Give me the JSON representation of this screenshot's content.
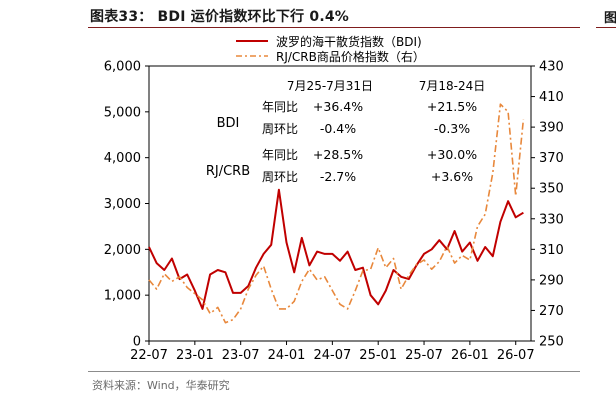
{
  "header": {
    "title": "图表33：  BDI 运价指数环比下行 0.4%",
    "right_glyph": "图"
  },
  "footer": {
    "source": "资料来源：Wind，华泰研究"
  },
  "chart_data": {
    "type": "line",
    "title": "BDI 运价指数环比下行 0.4%",
    "x_ticks": [
      "22-07",
      "23-01",
      "23-07",
      "24-01",
      "24-07",
      "25-01",
      "25-07",
      "26-01",
      "26-07"
    ],
    "xlim": [
      "2022-07",
      "2026-09"
    ],
    "y_left": {
      "lim": [
        0,
        6000
      ],
      "ticks": [
        "0",
        "1,000",
        "2,000",
        "3,000",
        "4,000",
        "5,000",
        "6,000"
      ]
    },
    "y_right": {
      "lim": [
        250,
        430
      ],
      "ticks": [
        "250",
        "270",
        "290",
        "310",
        "330",
        "350",
        "370",
        "390",
        "410",
        "430"
      ]
    },
    "legend": {
      "position": "top-right",
      "entries": [
        "波罗的海干散货指数（BDI)",
        "RJ/CRB商品价格指数（右）"
      ]
    },
    "series": [
      {
        "name": "波罗的海干散货指数（BDI)",
        "axis": "left",
        "color": "#c00000",
        "style": "solid",
        "points": [
          [
            "2022-07",
            2050
          ],
          [
            "2022-08",
            1700
          ],
          [
            "2022-09",
            1550
          ],
          [
            "2022-10",
            1800
          ],
          [
            "2022-11",
            1350
          ],
          [
            "2022-12",
            1450
          ],
          [
            "2023-01",
            1100
          ],
          [
            "2023-02",
            700
          ],
          [
            "2023-03",
            1450
          ],
          [
            "2023-04",
            1550
          ],
          [
            "2023-05",
            1500
          ],
          [
            "2023-06",
            1050
          ],
          [
            "2023-07",
            1050
          ],
          [
            "2023-08",
            1200
          ],
          [
            "2023-09",
            1600
          ],
          [
            "2023-10",
            1900
          ],
          [
            "2023-11",
            2100
          ],
          [
            "2023-12",
            3300
          ],
          [
            "2024-01",
            2150
          ],
          [
            "2024-02",
            1500
          ],
          [
            "2024-03",
            2250
          ],
          [
            "2024-04",
            1650
          ],
          [
            "2024-05",
            1950
          ],
          [
            "2024-06",
            1900
          ],
          [
            "2024-07",
            1900
          ],
          [
            "2024-08",
            1750
          ],
          [
            "2024-09",
            1950
          ],
          [
            "2024-10",
            1550
          ],
          [
            "2024-11",
            1600
          ],
          [
            "2024-12",
            1000
          ],
          [
            "2025-01",
            800
          ],
          [
            "2025-02",
            1100
          ],
          [
            "2025-03",
            1550
          ],
          [
            "2025-04",
            1400
          ],
          [
            "2025-05",
            1350
          ],
          [
            "2025-06",
            1650
          ],
          [
            "2025-07",
            1900
          ],
          [
            "2025-08",
            2000
          ],
          [
            "2025-09",
            2200
          ],
          [
            "2025-10",
            2000
          ],
          [
            "2025-11",
            2400
          ],
          [
            "2025-12",
            1950
          ],
          [
            "2026-01",
            2150
          ],
          [
            "2026-02",
            1750
          ],
          [
            "2026-03",
            2050
          ],
          [
            "2026-04",
            1850
          ],
          [
            "2026-05",
            2600
          ],
          [
            "2026-06",
            3050
          ],
          [
            "2026-07",
            2700
          ],
          [
            "2026-08",
            2800
          ]
        ]
      },
      {
        "name": "RJ/CRB商品价格指数（右）",
        "axis": "right",
        "color": "#e8883c",
        "style": "dash-dot",
        "points": [
          [
            "2022-07",
            290
          ],
          [
            "2022-08",
            284
          ],
          [
            "2022-09",
            294
          ],
          [
            "2022-10",
            289
          ],
          [
            "2022-11",
            292
          ],
          [
            "2022-12",
            285
          ],
          [
            "2023-01",
            281
          ],
          [
            "2023-02",
            277
          ],
          [
            "2023-03",
            268
          ],
          [
            "2023-04",
            272
          ],
          [
            "2023-05",
            262
          ],
          [
            "2023-06",
            264
          ],
          [
            "2023-07",
            271
          ],
          [
            "2023-08",
            284
          ],
          [
            "2023-09",
            293
          ],
          [
            "2023-10",
            299
          ],
          [
            "2023-11",
            284
          ],
          [
            "2023-12",
            271
          ],
          [
            "2024-01",
            271
          ],
          [
            "2024-02",
            276
          ],
          [
            "2024-03",
            289
          ],
          [
            "2024-04",
            297
          ],
          [
            "2024-05",
            290
          ],
          [
            "2024-06",
            292
          ],
          [
            "2024-07",
            283
          ],
          [
            "2024-08",
            274
          ],
          [
            "2024-09",
            271
          ],
          [
            "2024-10",
            283
          ],
          [
            "2024-11",
            296
          ],
          [
            "2024-12",
            297
          ],
          [
            "2025-01",
            311
          ],
          [
            "2025-02",
            298
          ],
          [
            "2025-03",
            304
          ],
          [
            "2025-04",
            284
          ],
          [
            "2025-05",
            293
          ],
          [
            "2025-06",
            300
          ],
          [
            "2025-07",
            303
          ],
          [
            "2025-08",
            297
          ],
          [
            "2025-09",
            302
          ],
          [
            "2025-10",
            312
          ],
          [
            "2025-11",
            301
          ],
          [
            "2025-12",
            306
          ],
          [
            "2026-01",
            303
          ],
          [
            "2026-02",
            325
          ],
          [
            "2026-03",
            333
          ],
          [
            "2026-04",
            360
          ],
          [
            "2026-05",
            405
          ],
          [
            "2026-06",
            400
          ],
          [
            "2026-07",
            345
          ],
          [
            "2026-08",
            395
          ]
        ]
      }
    ],
    "annotations": {
      "headers": [
        "7月25-7月31日",
        "7月18-24日"
      ],
      "rows": [
        {
          "group": "BDI",
          "label": "年同比",
          "v1": "+36.4%",
          "v2": "+21.5%"
        },
        {
          "group": "",
          "label": "周环比",
          "v1": "-0.4%",
          "v2": "-0.3%"
        },
        {
          "group": "RJ/CRB",
          "label": "年同比",
          "v1": "+28.5%",
          "v2": "+30.0%"
        },
        {
          "group": "",
          "label": "周环比",
          "v1": "-2.7%",
          "v2": "+3.6%"
        }
      ]
    }
  }
}
